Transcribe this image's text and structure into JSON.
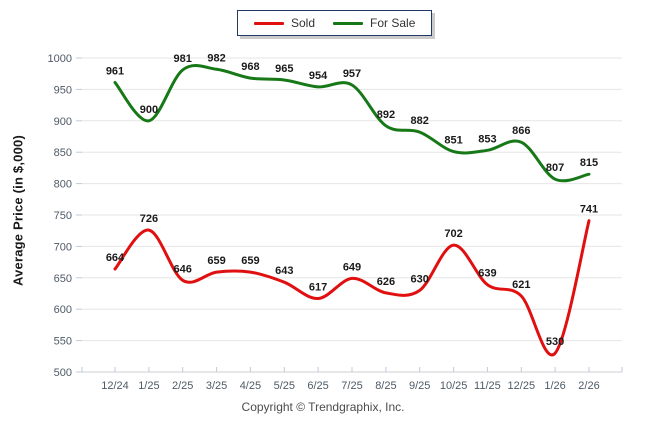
{
  "legend": {
    "items": [
      {
        "label": "Sold",
        "color": "#e01010"
      },
      {
        "label": "For Sale",
        "color": "#177817"
      }
    ]
  },
  "chart_data": {
    "type": "line",
    "title": "",
    "xlabel": "",
    "ylabel": "Average Price (in $,000)",
    "x": [
      "12/24",
      "1/25",
      "2/25",
      "3/25",
      "4/25",
      "5/25",
      "6/25",
      "7/25",
      "8/25",
      "9/25",
      "10/25",
      "11/25",
      "12/25",
      "1/26",
      "2/26"
    ],
    "series": [
      {
        "name": "Sold",
        "color": "#e01010",
        "values": [
          664,
          726,
          646,
          659,
          659,
          643,
          617,
          649,
          626,
          630,
          702,
          639,
          621,
          530,
          741
        ]
      },
      {
        "name": "For Sale",
        "color": "#177817",
        "values": [
          961,
          900,
          981,
          982,
          968,
          965,
          954,
          957,
          892,
          882,
          851,
          853,
          866,
          807,
          815
        ]
      }
    ],
    "ylim": [
      500,
      1000
    ],
    "ytick_step": 50,
    "grid": true,
    "smooth": true,
    "legend_position": "top-center",
    "colors": {
      "gridline": "#e6e6e6",
      "axis_line": "#cfcfcf",
      "tick": "#bccbde",
      "tick_label": "#4e5a66",
      "data_label": "#1a1a1a"
    }
  },
  "footer": {
    "copyright": "Copyright © Trendgraphix, Inc."
  }
}
